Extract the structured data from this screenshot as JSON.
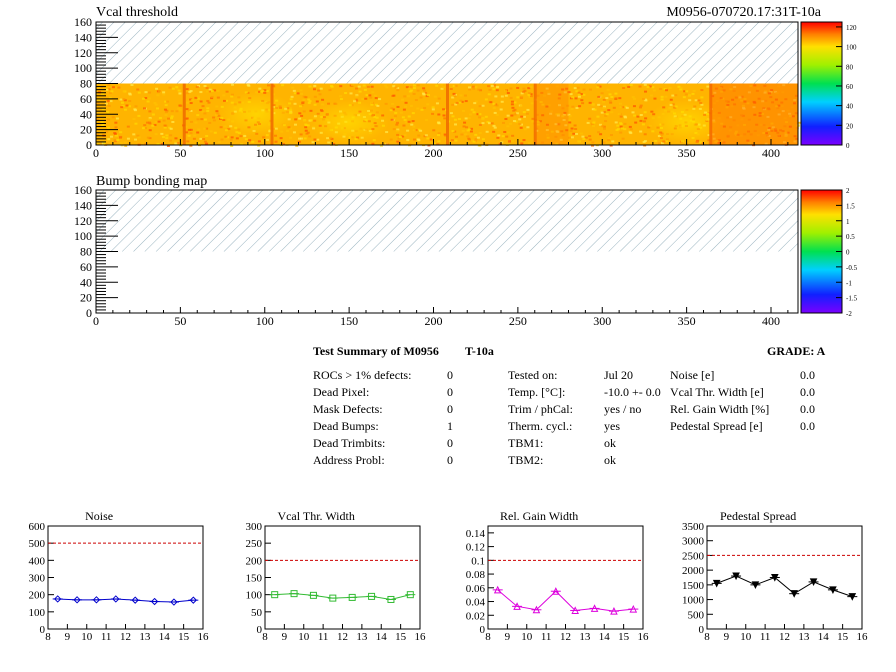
{
  "header": {
    "map1_title": "Vcal threshold",
    "run_id": "M0956-070720.17:31T-10a",
    "map2_title": "Bump bonding map"
  },
  "summary": {
    "title": "Test Summary of M0956",
    "test": "T-10a",
    "grade": "GRADE:  A",
    "col1": [
      {
        "label": "ROCs > 1% defects:",
        "value": "0"
      },
      {
        "label": "Dead Pixel:",
        "value": "0"
      },
      {
        "label": "Mask Defects:",
        "value": "0"
      },
      {
        "label": "Dead Bumps:",
        "value": "1"
      },
      {
        "label": "Dead Trimbits:",
        "value": "0"
      },
      {
        "label": "Address Probl:",
        "value": "0"
      }
    ],
    "col2": [
      {
        "label": "Tested on:",
        "value": "Jul 20"
      },
      {
        "label": "Temp. [°C]:",
        "value": "-10.0 +- 0.0"
      },
      {
        "label": "Trim / phCal:",
        "value": "yes / no"
      },
      {
        "label": "Therm. cycl.:",
        "value": "yes"
      },
      {
        "label": "TBM1:",
        "value": "ok"
      },
      {
        "label": "TBM2:",
        "value": "ok"
      }
    ],
    "col3": [
      {
        "label": "Noise [e]",
        "value": "0.0"
      },
      {
        "label": "Vcal Thr. Width [e]",
        "value": "0.0"
      },
      {
        "label": "Rel. Gain Width [%]",
        "value": "0.0"
      },
      {
        "label": "Pedestal Spread [e]",
        "value": "0.0"
      }
    ]
  },
  "chart_data": [
    {
      "type": "heatmap",
      "title": "Vcal threshold",
      "xlim": [
        0,
        416
      ],
      "ylim": [
        0,
        160
      ],
      "x_ticks": [
        0,
        50,
        100,
        150,
        200,
        250,
        300,
        350,
        400
      ],
      "y_ticks": [
        0,
        20,
        40,
        60,
        80,
        100,
        120,
        140,
        160
      ],
      "filled_rows": [
        0,
        80
      ],
      "value_typical": 95,
      "roc_boundary_columns": [
        52,
        104,
        208,
        260,
        364
      ],
      "colorbar": {
        "min": 0,
        "max": 125,
        "ticks": [
          0,
          20,
          40,
          60,
          80,
          100,
          120
        ]
      }
    },
    {
      "type": "heatmap",
      "title": "Bump bonding map",
      "xlim": [
        0,
        416
      ],
      "ylim": [
        0,
        160
      ],
      "x_ticks": [
        0,
        50,
        100,
        150,
        200,
        250,
        300,
        350,
        400
      ],
      "y_ticks": [
        0,
        20,
        40,
        60,
        80,
        100,
        120,
        140,
        160
      ],
      "filled_rows": [
        0,
        80
      ],
      "colorbar": {
        "min": -2,
        "max": 2,
        "ticks": [
          -2,
          -1.5,
          -1,
          -0.5,
          0,
          0.5,
          1,
          1.5,
          2
        ]
      }
    },
    {
      "type": "line",
      "title": "Noise",
      "x": [
        8.5,
        9.5,
        10.5,
        11.5,
        12.5,
        13.5,
        14.5,
        15.5
      ],
      "values": [
        175,
        170,
        170,
        175,
        168,
        160,
        157,
        168
      ],
      "xlim": [
        8,
        16
      ],
      "ylim": [
        0,
        600
      ],
      "x_ticks": [
        8,
        9,
        10,
        11,
        12,
        13,
        14,
        15,
        16
      ],
      "y_ticks": [
        0,
        100,
        200,
        300,
        400,
        500,
        600
      ],
      "threshold": 500,
      "color": "#0000cc",
      "marker": "diamond"
    },
    {
      "type": "line",
      "title": "Vcal Thr. Width",
      "x": [
        8.5,
        9.5,
        10.5,
        11.5,
        12.5,
        13.5,
        14.5,
        15.5
      ],
      "values": [
        100,
        103,
        98,
        90,
        92,
        95,
        86,
        100
      ],
      "xlim": [
        8,
        16
      ],
      "ylim": [
        0,
        300
      ],
      "x_ticks": [
        8,
        9,
        10,
        11,
        12,
        13,
        14,
        15,
        16
      ],
      "y_ticks": [
        0,
        50,
        100,
        150,
        200,
        250,
        300
      ],
      "threshold": 200,
      "color": "#33bb33",
      "marker": "square"
    },
    {
      "type": "line",
      "title": "Rel. Gain Width",
      "x": [
        8.5,
        9.5,
        10.5,
        11.5,
        12.5,
        13.5,
        14.5,
        15.5
      ],
      "values": [
        0.057,
        0.033,
        0.028,
        0.055,
        0.027,
        0.03,
        0.026,
        0.029
      ],
      "xlim": [
        8,
        16
      ],
      "ylim": [
        0,
        0.15
      ],
      "x_ticks": [
        8,
        9,
        10,
        11,
        12,
        13,
        14,
        15,
        16
      ],
      "y_ticks": [
        0,
        0.02,
        0.04,
        0.06,
        0.08,
        0.1,
        0.12,
        0.14
      ],
      "threshold": 0.1,
      "color": "#dd00dd",
      "marker": "triangle"
    },
    {
      "type": "line",
      "title": "Pedestal Spread",
      "x": [
        8.5,
        9.5,
        10.5,
        11.5,
        12.5,
        13.5,
        14.5,
        15.5
      ],
      "values": [
        1550,
        1800,
        1500,
        1750,
        1200,
        1600,
        1330,
        1100
      ],
      "xlim": [
        8,
        16
      ],
      "ylim": [
        0,
        3500
      ],
      "x_ticks": [
        8,
        9,
        10,
        11,
        12,
        13,
        14,
        15,
        16
      ],
      "y_ticks": [
        0,
        500,
        1000,
        1500,
        2000,
        2500,
        3000,
        3500
      ],
      "threshold": 2500,
      "color": "#000000",
      "marker": "triangle-down"
    }
  ]
}
